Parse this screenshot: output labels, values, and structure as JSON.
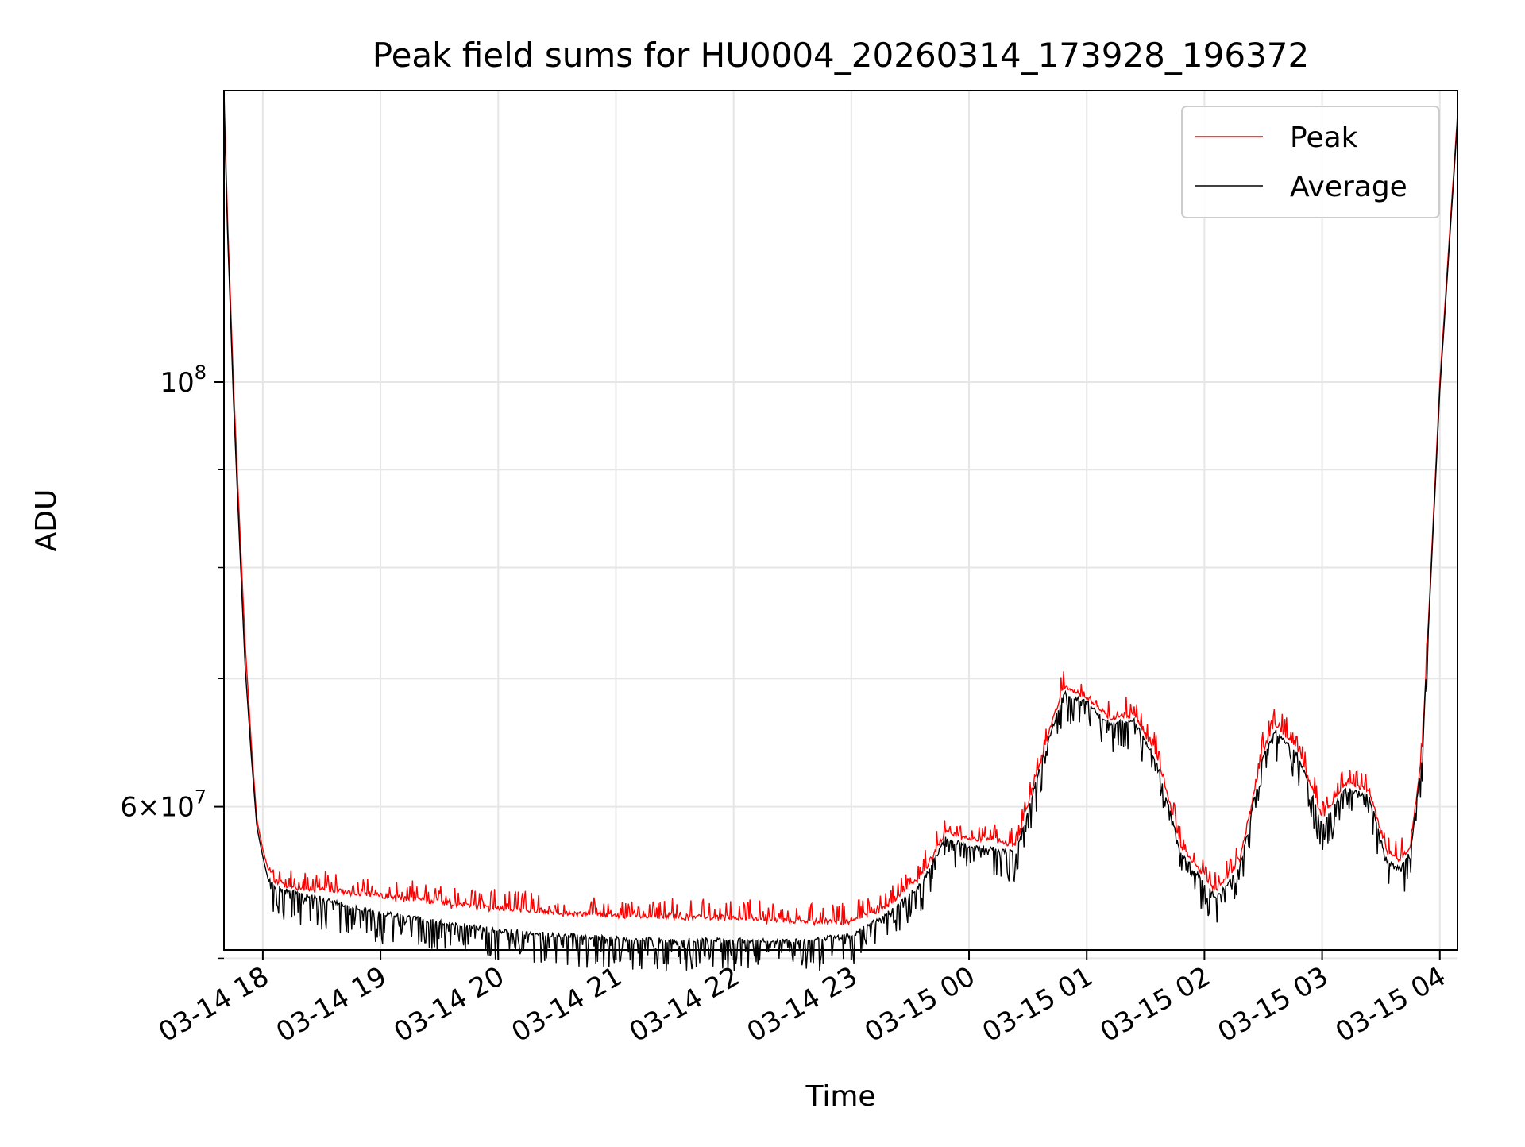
{
  "chart_data": {
    "type": "line",
    "title": "Peak field sums for HU0004_20260314_173928_196372",
    "xlabel": "Time",
    "ylabel": "ADU",
    "yscale": "log",
    "xlim_hours": [
      -0.33,
      10.15
    ],
    "ylim": [
      50500000,
      142000000
    ],
    "grid": true,
    "legend_position": "top-right",
    "x_tick_labels": [
      "03-14 18",
      "03-14 19",
      "03-14 20",
      "03-14 21",
      "03-14 22",
      "03-14 23",
      "03-15 00",
      "03-15 01",
      "03-15 02",
      "03-15 03",
      "03-15 04"
    ],
    "x_tick_hours": [
      0,
      1,
      2,
      3,
      4,
      5,
      6,
      7,
      8,
      9,
      10
    ],
    "y_major_ticks": [
      {
        "value": 100000000,
        "base": "10",
        "exp": "8"
      },
      {
        "value": 60000000,
        "base": "6×10",
        "exp": "7"
      }
    ],
    "y_minor_ticks": [
      50000000,
      70000000,
      80000000,
      90000000
    ],
    "x_note": "x values are hours relative to 03-14 18:00",
    "series": [
      {
        "name": "Peak",
        "color": "#ff0000",
        "x": [
          -0.33,
          -0.3,
          -0.25,
          -0.2,
          -0.15,
          -0.1,
          -0.05,
          0.0,
          0.05,
          0.1,
          0.2,
          0.3,
          0.5,
          0.75,
          1.0,
          1.5,
          2.0,
          2.5,
          3.0,
          3.5,
          4.0,
          4.5,
          5.0,
          5.3,
          5.6,
          5.8,
          6.0,
          6.2,
          6.4,
          6.6,
          6.8,
          7.0,
          7.2,
          7.4,
          7.6,
          7.8,
          8.0,
          8.1,
          8.3,
          8.5,
          8.6,
          8.8,
          9.0,
          9.2,
          9.4,
          9.55,
          9.65,
          9.75,
          9.85,
          10.0,
          10.15
        ],
        "values": [
          142000000,
          122000000,
          100000000,
          85000000,
          73000000,
          65000000,
          59000000,
          57000000,
          55500000,
          54700000,
          54300000,
          54200000,
          54100000,
          53900000,
          53700000,
          53300000,
          52900000,
          52600000,
          52400000,
          52300000,
          52300000,
          52100000,
          52000000,
          53000000,
          55000000,
          58000000,
          57500000,
          57500000,
          57000000,
          63000000,
          69000000,
          68200000,
          66500000,
          66800000,
          63500000,
          57000000,
          55000000,
          54000000,
          56000000,
          64000000,
          66000000,
          64000000,
          59000000,
          61500000,
          61000000,
          56500000,
          56000000,
          57000000,
          64000000,
          100000000,
          138000000
        ]
      },
      {
        "name": "Average",
        "color": "#000000",
        "x": [
          -0.33,
          -0.3,
          -0.25,
          -0.2,
          -0.15,
          -0.1,
          -0.05,
          0.0,
          0.05,
          0.1,
          0.2,
          0.3,
          0.5,
          0.75,
          1.0,
          1.5,
          2.0,
          2.5,
          3.0,
          3.5,
          4.0,
          4.5,
          5.0,
          5.3,
          5.6,
          5.8,
          6.0,
          6.2,
          6.4,
          6.6,
          6.8,
          7.0,
          7.2,
          7.4,
          7.6,
          7.8,
          8.0,
          8.1,
          8.3,
          8.5,
          8.6,
          8.8,
          9.0,
          9.2,
          9.4,
          9.55,
          9.65,
          9.75,
          9.85,
          10.0,
          10.15
        ],
        "values": [
          140000000,
          120000000,
          98000000,
          83000000,
          71000000,
          64000000,
          58500000,
          56500000,
          54800000,
          54200000,
          54000000,
          53800000,
          53500000,
          53000000,
          52600000,
          52000000,
          51500000,
          51200000,
          51000000,
          50900000,
          50900000,
          50800000,
          51200000,
          52500000,
          54500000,
          57500000,
          57000000,
          56800000,
          56500000,
          62500000,
          68500000,
          67800000,
          66000000,
          66300000,
          63000000,
          56500000,
          54500000,
          53500000,
          55500000,
          63500000,
          65500000,
          63500000,
          58500000,
          61000000,
          60500000,
          56000000,
          55500000,
          56500000,
          63500000,
          99000000,
          137000000
        ]
      }
    ]
  }
}
